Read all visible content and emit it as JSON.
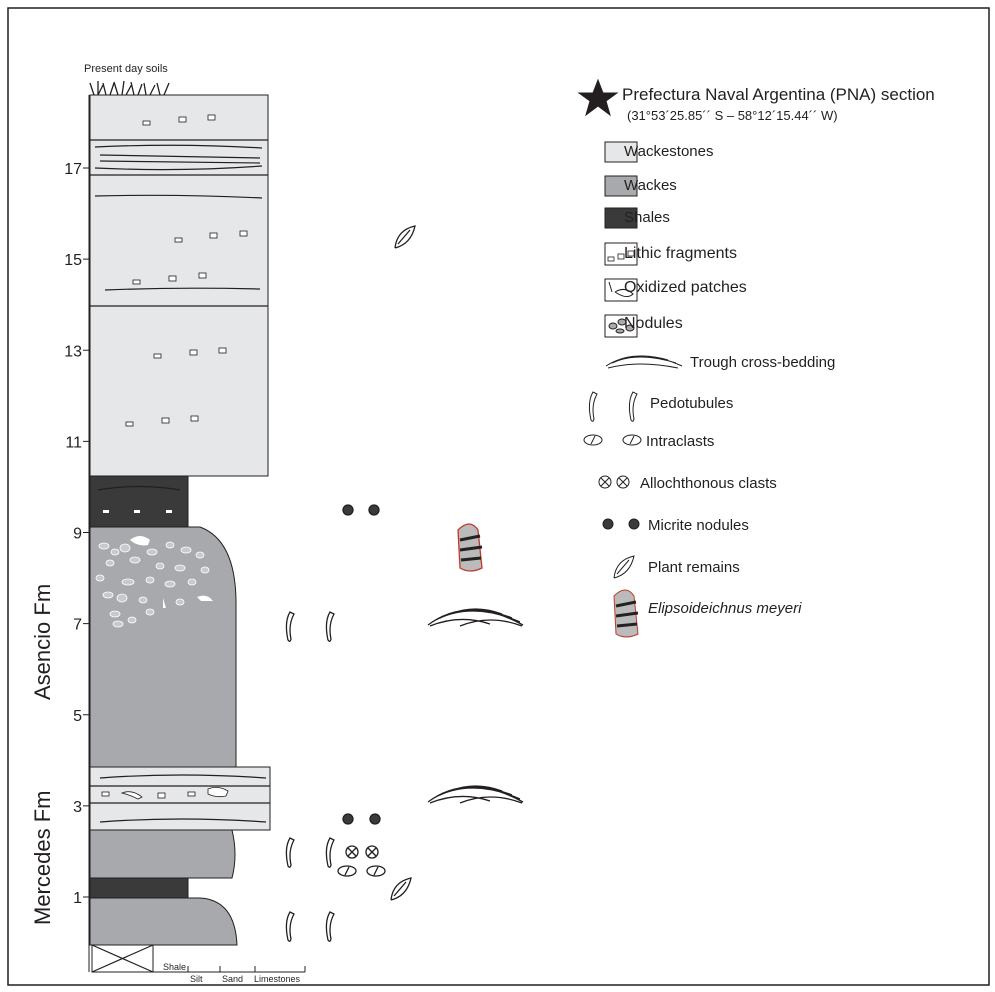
{
  "header": {
    "soils_label": "Present day soils"
  },
  "scale": {
    "ticks": [
      1,
      3,
      5,
      7,
      9,
      11,
      13,
      15,
      17
    ]
  },
  "formations": [
    "Asencio Fm",
    "Mercedes Fm"
  ],
  "legend": {
    "title": "Prefectura Naval Argentina (PNA) section",
    "coordinates": "(31°53´25.85´´ S – 58°12´15.44´´ W)",
    "items": [
      "Wackestones",
      "Wackes",
      "Shales",
      "Lithic fragments",
      "Oxidized patches",
      "Nodules",
      "Trough cross-bedding",
      "Pedotubules",
      "Intraclasts",
      "Allochthonous clasts",
      "Micrite nodules",
      "Plant remains",
      "Elipsoideichnus meyeri"
    ]
  },
  "grain_size_scale": [
    "Shale",
    "Silt",
    "Sand",
    "Limestones"
  ]
}
